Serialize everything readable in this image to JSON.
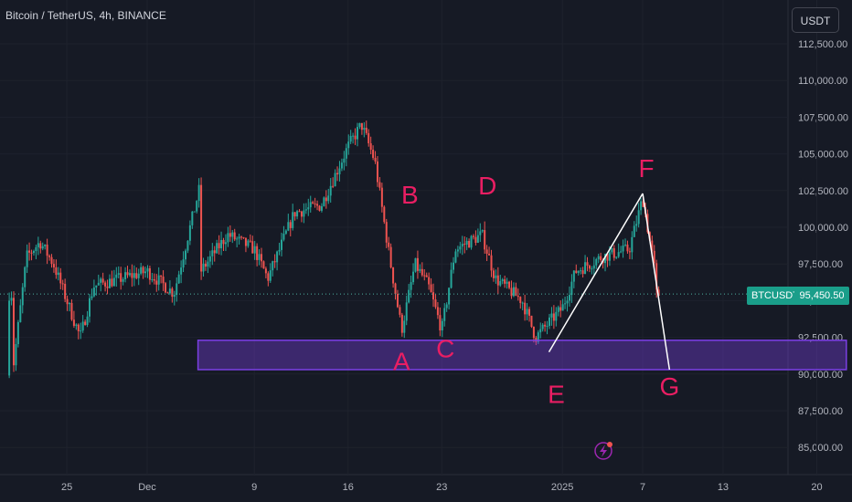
{
  "header": {
    "symbol_title": "Bitcoin / TetherUS, 4h, BINANCE",
    "currency": "USDT"
  },
  "ticker": {
    "symbol": "BTCUSDT",
    "last_price": "95,450.50"
  },
  "colors": {
    "up": "#26a69a",
    "down": "#ef5350",
    "accent": "#e91e63",
    "box": "#7b3fe4",
    "bg": "#161a25"
  },
  "chart_data": {
    "type": "candlestick",
    "title": "Bitcoin / TetherUS, 4h, BINANCE",
    "ylim": [
      83500,
      114000
    ],
    "y_ticks": [
      "112,500.00",
      "110,000.00",
      "107,500.00",
      "105,000.00",
      "102,500.00",
      "100,000.00",
      "97,500.00",
      "95,000.00",
      "92,500.00",
      "90,000.00",
      "87,500.00",
      "85,000.00"
    ],
    "x_ticks": [
      "25",
      "Dec",
      "9",
      "16",
      "23",
      "2025",
      "7",
      "13",
      "20"
    ],
    "close_path": [
      [
        "Nov 21",
        90500
      ],
      [
        "Nov 22",
        98000
      ],
      [
        "Nov 23",
        99000
      ],
      [
        "Nov 24",
        97500
      ],
      [
        "Nov 26",
        92500
      ],
      [
        "Nov 27",
        96000
      ],
      [
        "Nov 29",
        96500
      ],
      [
        "Dec 1",
        97000
      ],
      [
        "Dec 3",
        95500
      ],
      [
        "Dec 5",
        103000
      ],
      [
        "Dec 5",
        97000
      ],
      [
        "Dec 7",
        99500
      ],
      [
        "Dec 9",
        98500
      ],
      [
        "Dec 10",
        96500
      ],
      [
        "Dec 12",
        101000
      ],
      [
        "Dec 14",
        101500
      ],
      [
        "Dec 16",
        105500
      ],
      [
        "Dec 17",
        107000
      ],
      [
        "Dec 18",
        104500
      ],
      [
        "Dec 19",
        98500
      ],
      [
        "Dec 20",
        93000
      ],
      [
        "Dec 21",
        97500
      ],
      [
        "Dec 22",
        96000
      ],
      [
        "Dec 23",
        93000
      ],
      [
        "Dec 24",
        98500
      ],
      [
        "Dec 26",
        99500
      ],
      [
        "Dec 27",
        96500
      ],
      [
        "Dec 29",
        95000
      ],
      [
        "Dec 30",
        92500
      ],
      [
        "Dec 31",
        93500
      ],
      [
        "Jan 1",
        94500
      ],
      [
        "Jan 2",
        97000
      ],
      [
        "Jan 4",
        98000
      ],
      [
        "Jan 6",
        98500
      ],
      [
        "Jan 7",
        102000
      ],
      [
        "Jan 8",
        96500
      ],
      [
        "Jan 8",
        95450
      ]
    ],
    "support_zone": {
      "from": "Dec 5",
      "to": "Jan 22",
      "low": 90300,
      "high": 92300
    },
    "pattern_points": [
      {
        "label": "A",
        "date": "Dec 20",
        "price": 92500
      },
      {
        "label": "B",
        "date": "Dec 20",
        "price": 101000
      },
      {
        "label": "C",
        "date": "Dec 23",
        "price": 92500
      },
      {
        "label": "D",
        "date": "Dec 26",
        "price": 101500
      },
      {
        "label": "E",
        "date": "Dec 31",
        "price": 91500
      },
      {
        "label": "F",
        "date": "Jan 7",
        "price": 102300
      },
      {
        "label": "G",
        "date": "Jan 9",
        "price": 90300
      }
    ],
    "last_price": 95450.5,
    "grid": true
  }
}
